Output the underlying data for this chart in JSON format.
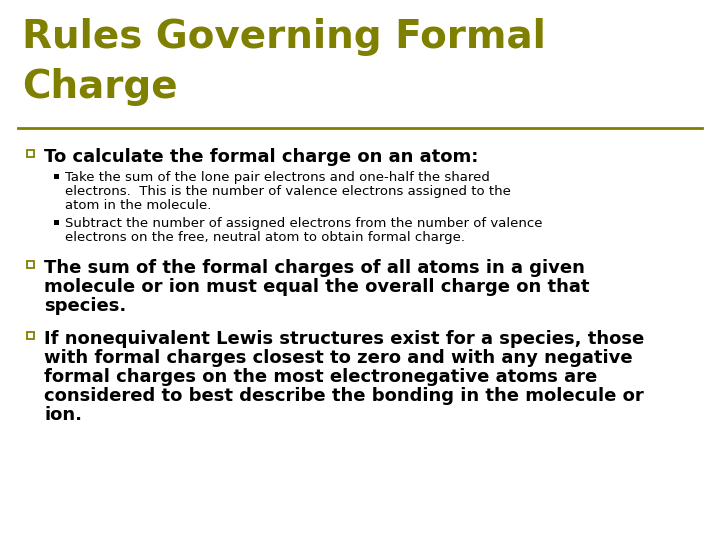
{
  "title_line1": "Rules Governing Formal",
  "title_line2": "Charge",
  "title_color": "#808000",
  "bg_color": "#ffffff",
  "line_color": "#808000",
  "bullet_color": "#808000",
  "body_color": "#000000",
  "title_fontsize": 28,
  "bullet1_fontsize": 13,
  "sub_fontsize": 9.5,
  "bullet23_fontsize": 13,
  "bullet1_text": "To calculate the formal charge on an atom:",
  "sub_bullet1_lines": [
    "Take the sum of the lone pair electrons and one-half the shared",
    "electrons.  This is the number of valence electrons assigned to the",
    "atom in the molecule."
  ],
  "sub_bullet2_lines": [
    "Subtract the number of assigned electrons from the number of valence",
    "electrons on the free, neutral atom to obtain formal charge."
  ],
  "bullet2_lines": [
    "The sum of the formal charges of all atoms in a given",
    "molecule or ion must equal the overall charge on that",
    "species."
  ],
  "bullet3_lines": [
    "If nonequivalent Lewis structures exist for a species, those",
    "with formal charges closest to zero and with any negative",
    "formal charges on the most electronegative atoms are",
    "considered to best describe the bonding in the molecule or",
    "ion."
  ]
}
